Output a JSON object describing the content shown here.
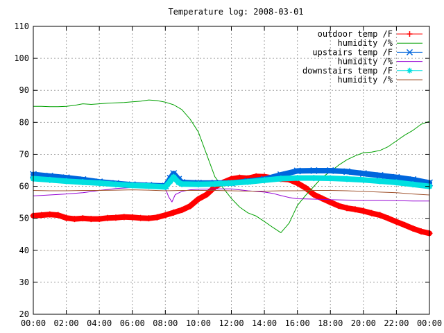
{
  "chart_data": {
    "type": "line",
    "title": "Temperature log: 2008-03-01",
    "xlabel": "",
    "ylabel": "",
    "ylim": [
      20,
      110
    ],
    "yticks": [
      20,
      30,
      40,
      50,
      60,
      70,
      80,
      90,
      100,
      110
    ],
    "xlim": [
      0,
      24
    ],
    "xticks": [
      {
        "v": 0,
        "label": "00:00"
      },
      {
        "v": 2,
        "label": "02:00"
      },
      {
        "v": 4,
        "label": "04:00"
      },
      {
        "v": 6,
        "label": "06:00"
      },
      {
        "v": 8,
        "label": "08:00"
      },
      {
        "v": 10,
        "label": "10:00"
      },
      {
        "v": 12,
        "label": "12:00"
      },
      {
        "v": 14,
        "label": "14:00"
      },
      {
        "v": 16,
        "label": "16:00"
      },
      {
        "v": 18,
        "label": "18:00"
      },
      {
        "v": 20,
        "label": "20:00"
      },
      {
        "v": 22,
        "label": "22:00"
      },
      {
        "v": 24,
        "label": "00:00"
      }
    ],
    "grid": true,
    "legend_position": "top-right",
    "series": [
      {
        "name": "outdoor temp /F",
        "color": "#ff0000",
        "marker": "plus",
        "style": "thick",
        "x": [
          0,
          0.5,
          1,
          1.5,
          2,
          2.5,
          3,
          3.5,
          4,
          4.5,
          5,
          5.5,
          6,
          6.5,
          7,
          7.5,
          8,
          8.5,
          9,
          9.5,
          10,
          10.5,
          11,
          11.5,
          12,
          12.5,
          13,
          13.5,
          14,
          14.5,
          15,
          15.5,
          16,
          16.5,
          17,
          17.5,
          18,
          18.5,
          19,
          19.5,
          20,
          20.5,
          21,
          21.5,
          22,
          22.5,
          23,
          23.5,
          24
        ],
        "y": [
          50.8,
          51,
          51.2,
          51,
          50.1,
          49.8,
          50,
          49.8,
          49.8,
          50.1,
          50.2,
          50.4,
          50.3,
          50.1,
          50,
          50.3,
          51,
          51.8,
          52.6,
          53.8,
          56,
          57.4,
          59.8,
          61.2,
          62.3,
          62.7,
          62.5,
          63.1,
          63,
          62.6,
          62.3,
          62.1,
          61,
          59.5,
          57.4,
          56.2,
          55,
          53.9,
          53.2,
          52.8,
          52.3,
          51.6,
          51,
          50,
          48.9,
          47.9,
          46.8,
          45.9,
          45.3
        ]
      },
      {
        "name": "humidity /%",
        "color": "#00a000",
        "marker": "none",
        "style": "thin",
        "x": [
          0,
          0.5,
          1,
          1.5,
          2,
          2.5,
          3,
          3.5,
          4,
          4.5,
          5,
          5.5,
          6,
          6.5,
          7,
          7.5,
          8,
          8.5,
          9,
          9.5,
          10,
          10.5,
          11,
          11.5,
          12,
          12.5,
          13,
          13.5,
          14,
          14.5,
          15,
          15.5,
          16,
          16.5,
          17,
          17.5,
          18,
          18.5,
          19,
          19.5,
          20,
          20.5,
          21,
          21.5,
          22,
          22.5,
          23,
          23.5,
          24
        ],
        "y": [
          85,
          85,
          84.9,
          84.9,
          85,
          85.3,
          85.8,
          85.6,
          85.8,
          86,
          86.1,
          86.2,
          86.4,
          86.6,
          87,
          86.8,
          86.3,
          85.5,
          84,
          81,
          77,
          70,
          63,
          59.5,
          56.2,
          53.5,
          51.7,
          50.7,
          49,
          47.2,
          45.5,
          48.5,
          54,
          57.2,
          60,
          62.8,
          64.6,
          66.6,
          68.3,
          69.5,
          70.5,
          70.7,
          71.2,
          72.4,
          74.2,
          76,
          77.5,
          79.4,
          80.3
        ]
      },
      {
        "name": "upstairs temp /F",
        "color": "#0066dd",
        "marker": "cross",
        "style": "thick",
        "x": [
          0,
          1,
          2,
          3,
          4,
          5,
          6,
          7,
          8,
          8.3,
          8.5,
          8.8,
          9,
          10,
          11,
          12,
          13,
          14,
          15,
          16,
          17,
          18,
          19,
          20,
          21,
          22,
          23,
          24
        ],
        "y": [
          63.7,
          63.2,
          62.7,
          62.1,
          61.4,
          60.9,
          60.5,
          60.3,
          60.1,
          62.5,
          64,
          62.2,
          61.2,
          61,
          61,
          61,
          61.6,
          62.2,
          63.6,
          64.8,
          64.9,
          64.9,
          64.6,
          64,
          63.4,
          62.8,
          62.1,
          61.1
        ]
      },
      {
        "name": "humidity /%",
        "color": "#9400d3",
        "marker": "none",
        "style": "thin",
        "x": [
          0,
          1,
          2,
          3,
          4,
          5,
          6,
          7,
          8,
          8.2,
          8.4,
          8.6,
          9,
          9.5,
          10,
          11,
          12,
          13,
          14,
          14.5,
          15,
          15.5,
          16,
          17,
          18,
          19,
          20,
          21,
          22,
          23,
          24
        ],
        "y": [
          57,
          57.3,
          57.6,
          58,
          58.7,
          59.3,
          59.6,
          59.7,
          59.4,
          56.7,
          55.1,
          57.4,
          58.4,
          58.9,
          59.1,
          59.2,
          59.2,
          58.6,
          58.2,
          57.8,
          57.1,
          56.5,
          56.1,
          56,
          55.8,
          55.7,
          55.6,
          55.6,
          55.5,
          55.4,
          55.4
        ]
      },
      {
        "name": "downstairs temp /F",
        "color": "#00e0e0",
        "marker": "star",
        "style": "thick",
        "x": [
          0,
          1,
          2,
          3,
          4,
          5,
          6,
          7,
          8,
          8.3,
          8.5,
          8.8,
          9,
          10,
          11,
          12,
          13,
          14,
          15,
          16,
          17,
          18,
          19,
          20,
          21,
          22,
          23,
          24
        ],
        "y": [
          62.4,
          62,
          61.6,
          61.3,
          61,
          60.6,
          60.3,
          60.1,
          59.8,
          61.6,
          62.9,
          61.2,
          60.7,
          60.6,
          60.7,
          61,
          61.4,
          61.9,
          62.4,
          62.6,
          62.6,
          62.5,
          62.3,
          62,
          61.6,
          61.2,
          60.6,
          60
        ]
      },
      {
        "name": "humidity /%",
        "color": "#a0522d",
        "marker": "none",
        "style": "thin",
        "x": [
          0,
          1,
          2,
          3,
          4,
          5,
          6,
          7,
          8,
          9,
          10,
          11,
          12,
          13,
          14,
          15,
          16,
          17,
          18,
          19,
          20,
          21,
          22,
          23,
          24
        ],
        "y": [
          58.7,
          58.6,
          58.6,
          58.7,
          58.7,
          58.8,
          58.9,
          58.8,
          58.6,
          58.7,
          58.7,
          58.7,
          58.6,
          58.5,
          58.5,
          58.6,
          58.6,
          58.7,
          58.7,
          58.6,
          58.4,
          58.2,
          58,
          57.6,
          57.3
        ]
      }
    ]
  }
}
